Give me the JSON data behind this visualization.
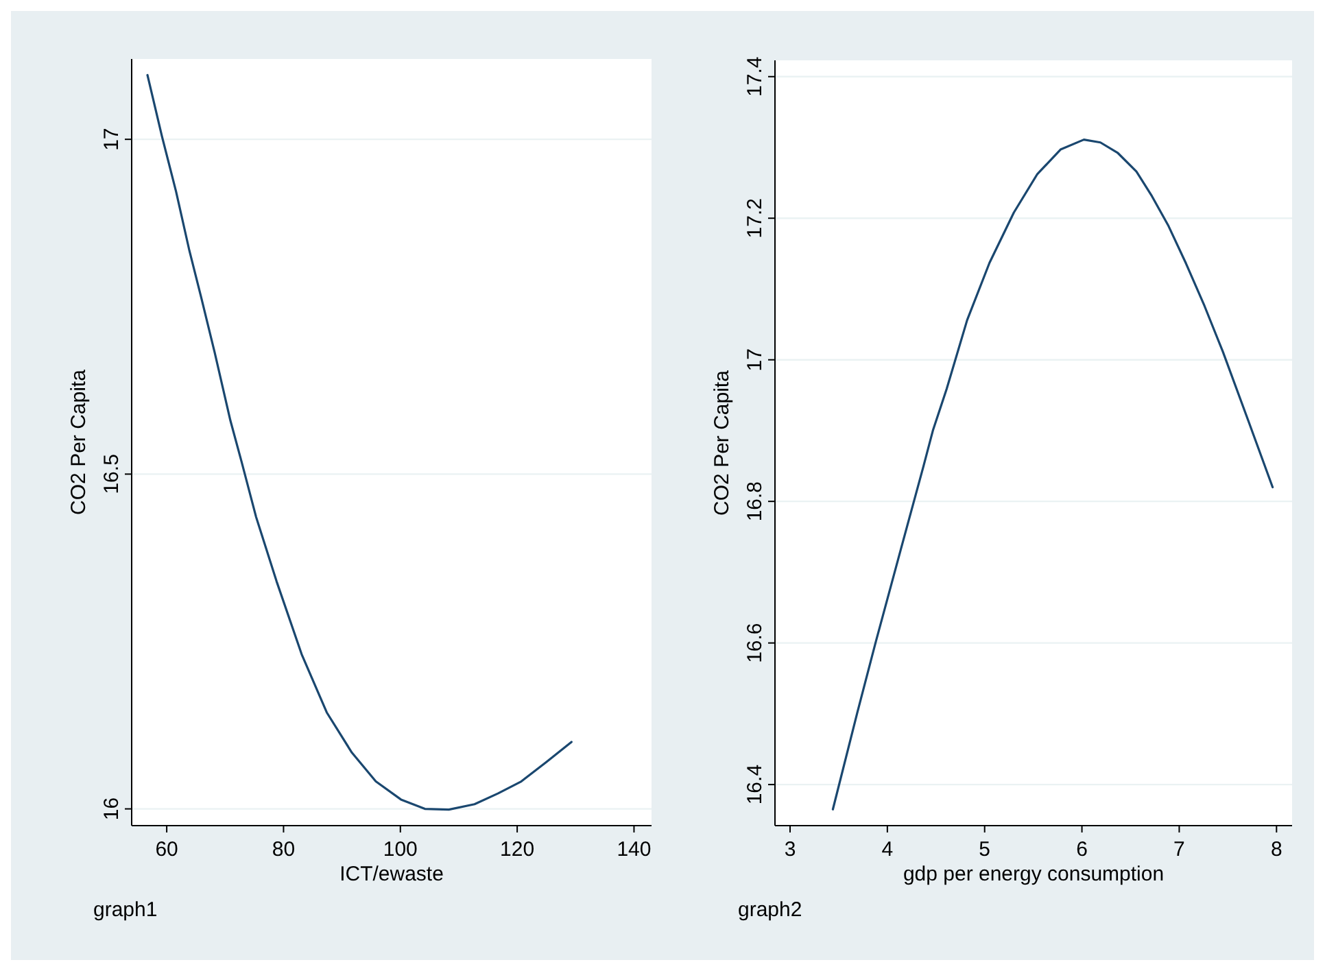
{
  "chart_data": [
    {
      "type": "line",
      "xlabel": "ICT/ewaste",
      "ylabel": "CO2 Per Capita",
      "annotations": [
        "graph1"
      ],
      "xlim": [
        54,
        143
      ],
      "ylim": [
        15.975,
        17.12
      ],
      "xticks": [
        60,
        80,
        100,
        120,
        140
      ],
      "yticks": [
        16,
        16.5,
        17
      ],
      "grid": "y",
      "series": [
        {
          "color": "#1a476f",
          "x": [
            56.7,
            59.2,
            61.6,
            63.9,
            65.9,
            68.2,
            70.9,
            72.8,
            75.3,
            78.8,
            83.1,
            87.4,
            91.7,
            95.8,
            100.1,
            104.2,
            108.3,
            112.7,
            116.7,
            120.7,
            125.0,
            129.3
          ],
          "values": [
            17.096,
            17.004,
            16.922,
            16.833,
            16.764,
            16.682,
            16.58,
            16.519,
            16.436,
            16.34,
            16.231,
            16.144,
            16.084,
            16.041,
            16.014,
            16.0,
            15.999,
            16.007,
            16.023,
            16.041,
            16.07,
            16.1
          ]
        }
      ]
    },
    {
      "type": "line",
      "xlabel": "gdp per energy consumption",
      "ylabel": "CO2 Per Capita",
      "annotations": [
        "graph2"
      ],
      "xlim": [
        2.845,
        8.16
      ],
      "ylim": [
        16.342,
        17.423
      ],
      "xticks": [
        3,
        4,
        5,
        6,
        7,
        8
      ],
      "yticks": [
        16.4,
        16.6,
        16.8,
        17,
        17.2,
        17.4
      ],
      "grid": "y",
      "series": [
        {
          "color": "#1a476f",
          "x": [
            3.44,
            3.69,
            3.88,
            4.14,
            4.37,
            4.47,
            4.61,
            4.82,
            5.05,
            5.3,
            5.54,
            5.78,
            6.02,
            6.19,
            6.37,
            6.56,
            6.72,
            6.89,
            7.07,
            7.26,
            7.45,
            7.71,
            7.96
          ],
          "values": [
            16.365,
            16.501,
            16.601,
            16.733,
            16.849,
            16.901,
            16.959,
            17.056,
            17.137,
            17.208,
            17.262,
            17.297,
            17.311,
            17.307,
            17.292,
            17.266,
            17.231,
            17.189,
            17.136,
            17.076,
            17.011,
            16.914,
            16.82
          ]
        }
      ]
    }
  ]
}
